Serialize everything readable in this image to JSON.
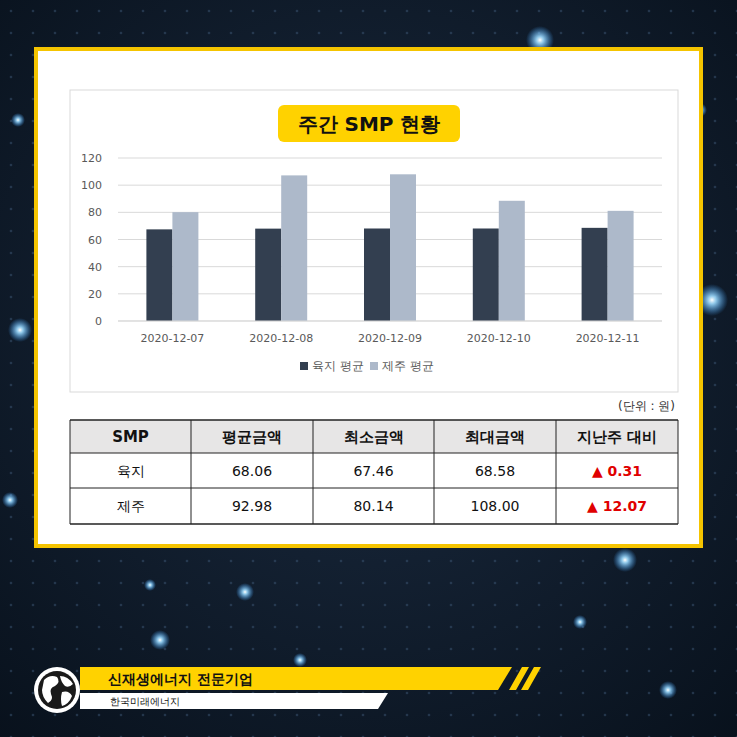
{
  "chart_data": {
    "type": "bar",
    "title": "주간 SMP 현황",
    "categories": [
      "2020-12-07",
      "2020-12-08",
      "2020-12-09",
      "2020-12-10",
      "2020-12-11"
    ],
    "series": [
      {
        "name": "육지 평균",
        "color": "#333f50",
        "values": [
          67.46,
          68.0,
          68.1,
          68.1,
          68.58
        ]
      },
      {
        "name": "제주 평균",
        "color": "#adb9ca",
        "values": [
          80.14,
          107.2,
          108.0,
          88.5,
          81.1
        ]
      }
    ],
    "ylim": [
      0,
      120
    ],
    "yticks": [
      0,
      20,
      40,
      60,
      80,
      100,
      120
    ],
    "grid": true,
    "legend": "bottom"
  },
  "unit_note": "(단위 : 원)",
  "table": {
    "header": [
      "SMP",
      "평균금액",
      "최소금액",
      "최대금액",
      "지난주 대비"
    ],
    "rows": [
      [
        "육지",
        "68.06",
        "67.46",
        "68.58",
        "▲ 0.31"
      ],
      [
        "제주",
        "92.98",
        "80.14",
        "108.00",
        "▲ 12.07"
      ]
    ]
  },
  "footer": {
    "title": "신재생에너지 전문기업",
    "company": "한국미래에너지"
  }
}
